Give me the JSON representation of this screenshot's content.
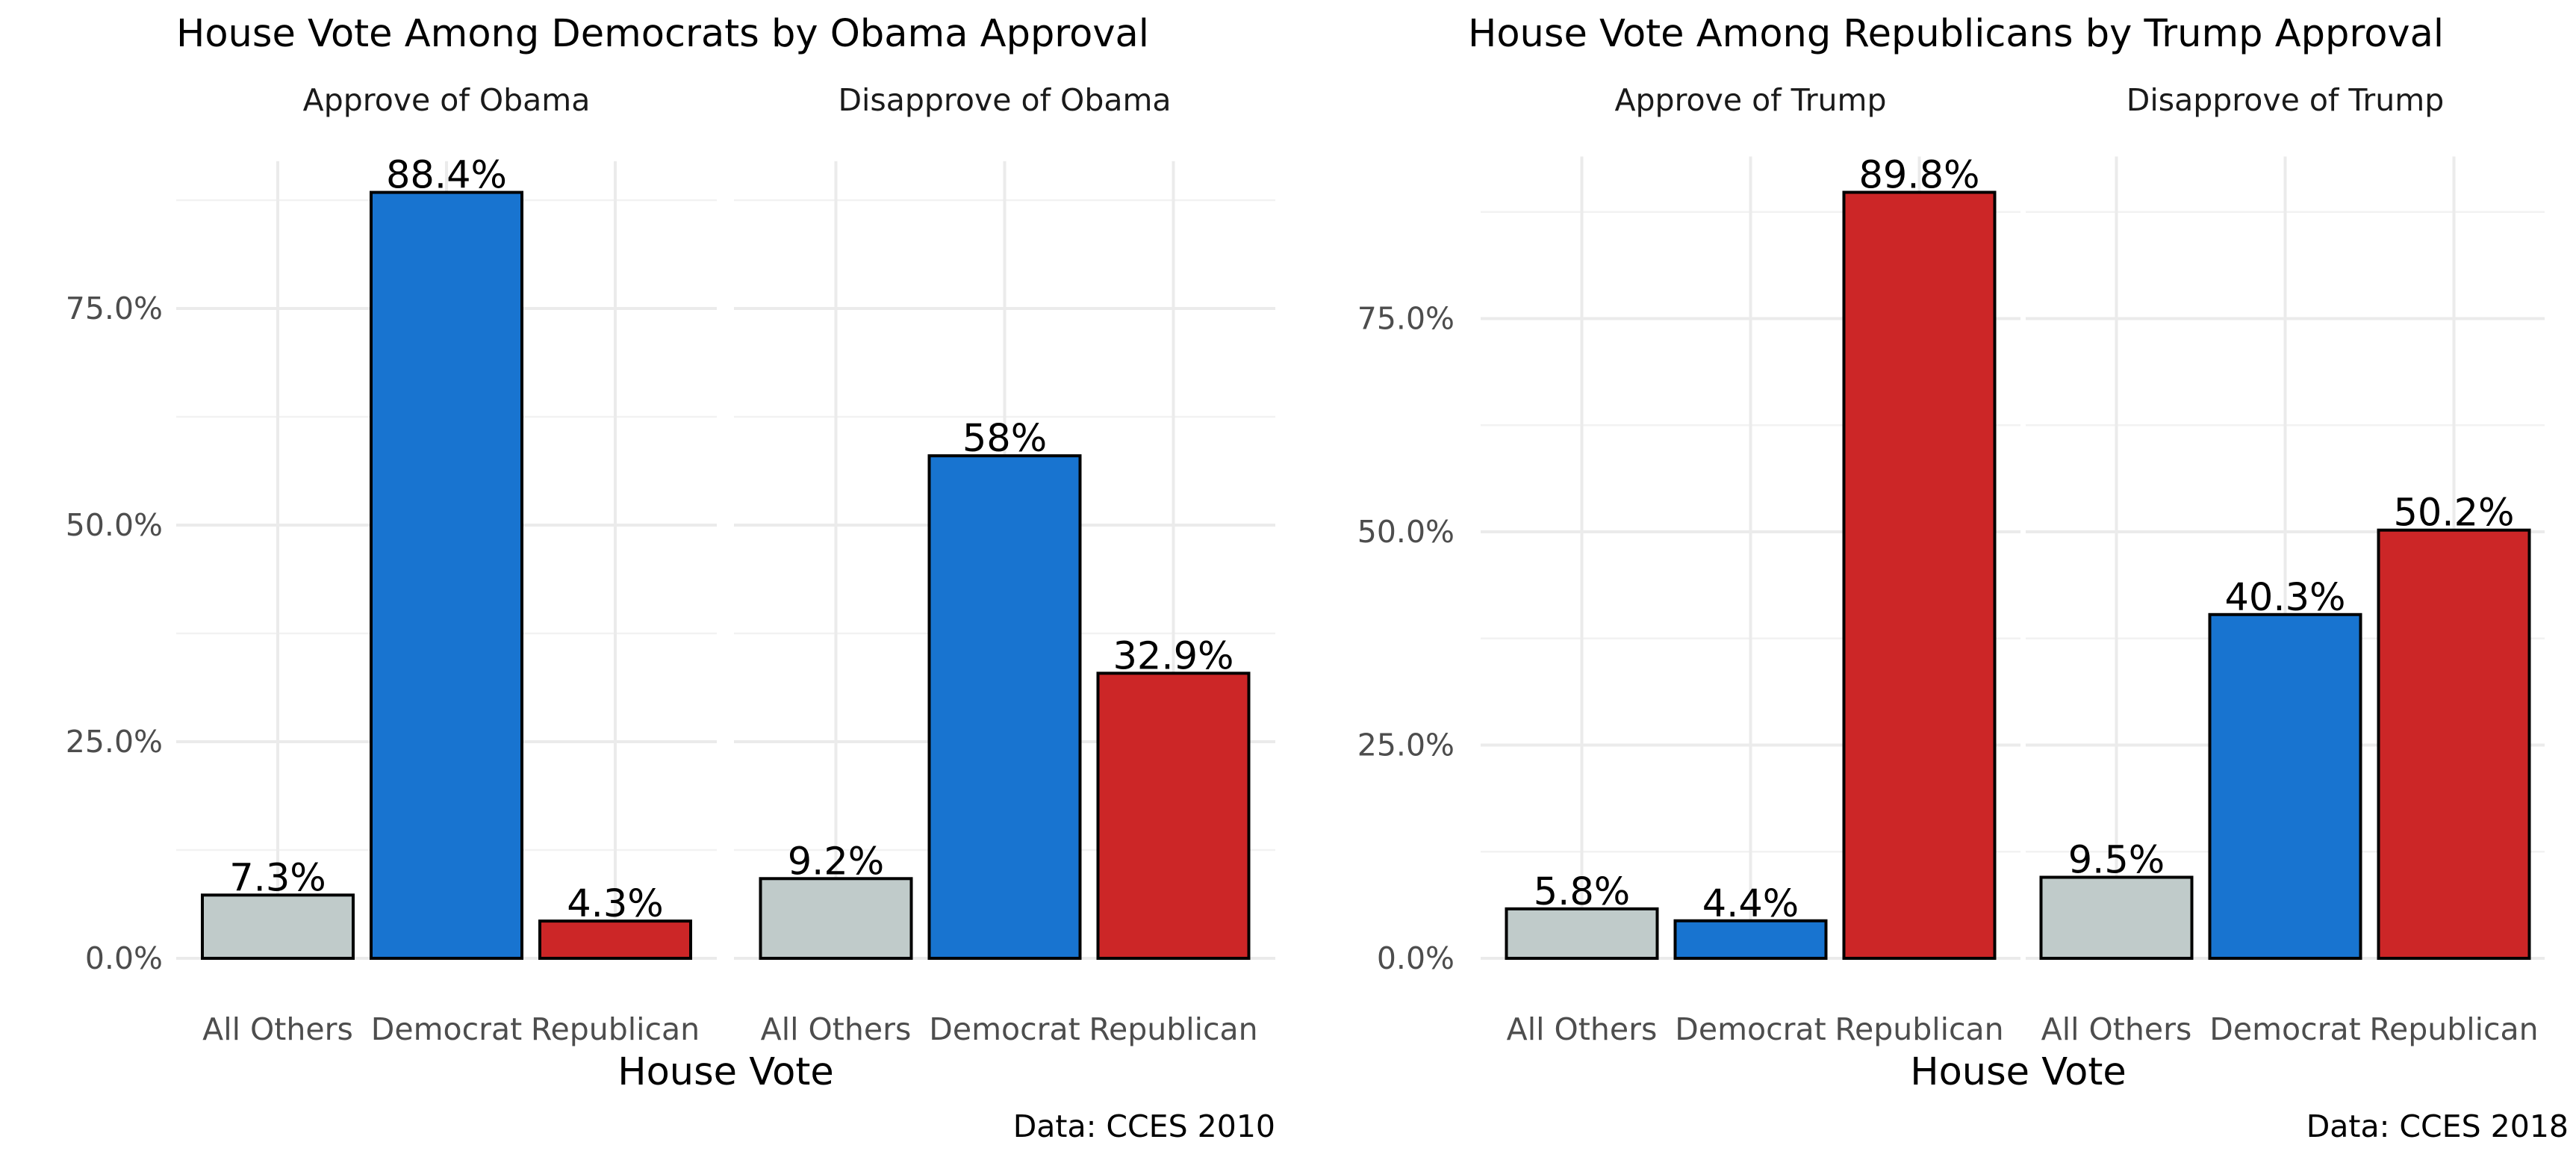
{
  "chart_data": [
    {
      "type": "bar",
      "title": "House Vote Among Democrats by Obama Approval",
      "xlabel": "House Vote",
      "ylabel": "",
      "caption": "Data: CCES 2010",
      "ylim": [
        0,
        92
      ],
      "yticks": [
        0,
        25,
        50,
        75
      ],
      "ytick_labels": [
        "0.0%",
        "25.0%",
        "50.0%",
        "75.0%"
      ],
      "grid": true,
      "categories": [
        "All Others",
        "Democrat",
        "Republican"
      ],
      "colors": [
        "#C0CBCA",
        "#1874D0",
        "#CC2627"
      ],
      "facets": [
        {
          "label": "Approve of Obama",
          "values": [
            7.3,
            88.4,
            4.3
          ],
          "value_labels": [
            "7.3%",
            "88.4%",
            "4.3%"
          ]
        },
        {
          "label": "Disapprove of Obama",
          "values": [
            9.2,
            58,
            32.9
          ],
          "value_labels": [
            "9.2%",
            "58%",
            "32.9%"
          ]
        }
      ]
    },
    {
      "type": "bar",
      "title": "House Vote Among Republicans by Trump Approval",
      "xlabel": "House Vote",
      "ylabel": "",
      "caption": "Data: CCES 2018",
      "ylim": [
        0,
        94
      ],
      "yticks": [
        0,
        25,
        50,
        75
      ],
      "ytick_labels": [
        "0.0%",
        "25.0%",
        "50.0%",
        "75.0%"
      ],
      "grid": true,
      "categories": [
        "All Others",
        "Democrat",
        "Republican"
      ],
      "colors": [
        "#C0CBCA",
        "#1874D0",
        "#CC2627"
      ],
      "facets": [
        {
          "label": "Approve of Trump",
          "values": [
            5.8,
            4.4,
            89.8
          ],
          "value_labels": [
            "5.8%",
            "4.4%",
            "89.8%"
          ]
        },
        {
          "label": "Disapprove of Trump",
          "values": [
            9.5,
            40.3,
            50.2
          ],
          "value_labels": [
            "9.5%",
            "40.3%",
            "50.2%"
          ]
        }
      ]
    }
  ]
}
